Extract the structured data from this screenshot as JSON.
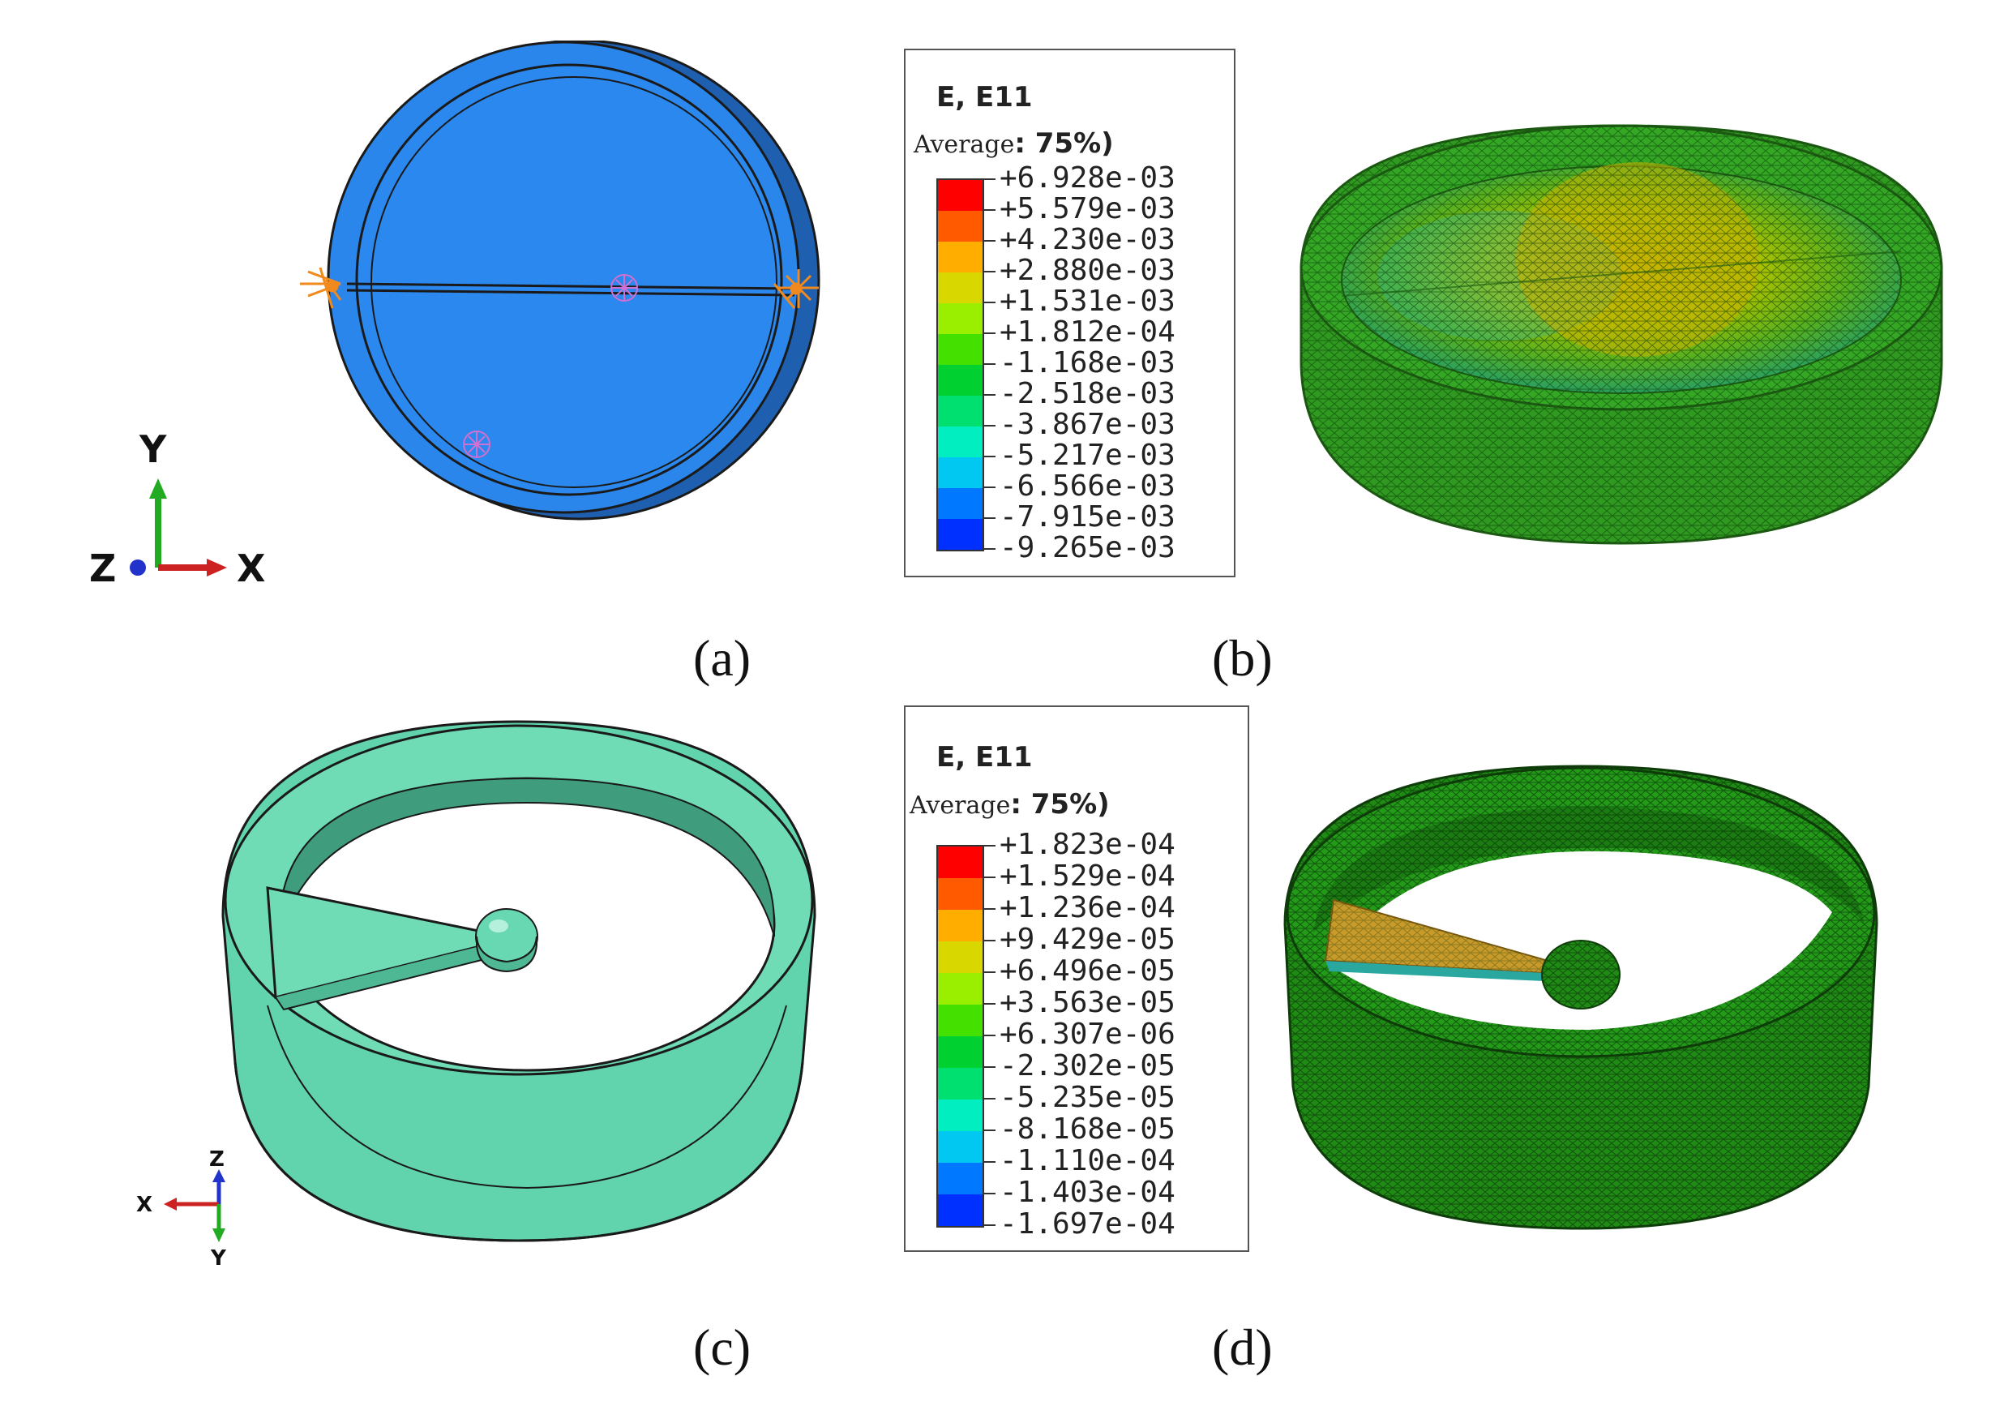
{
  "panels": {
    "a": {
      "caption": "(a)",
      "axes": {
        "x": "X",
        "y": "Y",
        "z": "Z"
      }
    },
    "b": {
      "caption": "(b)",
      "legend": {
        "title": "E, E11",
        "average_label": "Average",
        "average_value": ": 75%)",
        "values": [
          "+6.928e-03",
          "+5.579e-03",
          "+4.230e-03",
          "+2.880e-03",
          "+1.531e-03",
          "+1.812e-04",
          "-1.168e-03",
          "-2.518e-03",
          "-3.867e-03",
          "-5.217e-03",
          "-6.566e-03",
          "-7.915e-03",
          "-9.265e-03"
        ],
        "colors": [
          "#ff0000",
          "#ff5a00",
          "#ffae00",
          "#d8d800",
          "#9aee00",
          "#44e000",
          "#00d030",
          "#00e070",
          "#00eec0",
          "#00c8f0",
          "#0078ff",
          "#0030ff",
          "#0000d8"
        ]
      }
    },
    "c": {
      "caption": "(c)",
      "axes": {
        "x": "X",
        "y": "Y",
        "z": "Z"
      }
    },
    "d": {
      "caption": "(d)",
      "legend": {
        "title": "E, E11",
        "average_label": "Average",
        "average_value": ": 75%)",
        "values": [
          "+1.823e-04",
          "+1.529e-04",
          "+1.236e-04",
          "+9.429e-05",
          "+6.496e-05",
          "+3.563e-05",
          "+6.307e-06",
          "-2.302e-05",
          "-5.235e-05",
          "-8.168e-05",
          "-1.110e-04",
          "-1.403e-04",
          "-1.697e-04"
        ],
        "colors": [
          "#ff0000",
          "#ff5a00",
          "#ffae00",
          "#d8d800",
          "#9aee00",
          "#44e000",
          "#00d030",
          "#00e070",
          "#00eec0",
          "#00c8f0",
          "#0078ff",
          "#0030ff",
          "#0000d8"
        ]
      }
    }
  }
}
